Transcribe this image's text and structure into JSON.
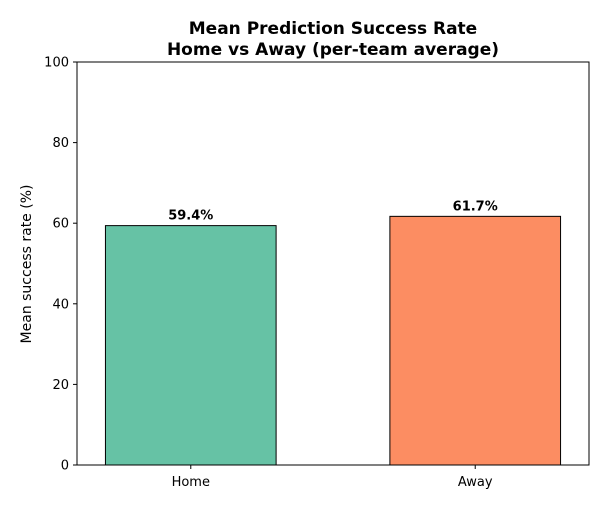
{
  "chart_data": {
    "type": "bar",
    "title": [
      "Mean Prediction Success Rate",
      "Home vs Away (per-team average)"
    ],
    "xlabel": "",
    "ylabel": "Mean success rate (%)",
    "categories": [
      "Home",
      "Away"
    ],
    "values": [
      59.4,
      61.7
    ],
    "data_labels": [
      "59.4%",
      "61.7%"
    ],
    "colors": [
      "#66c2a5",
      "#fc8d62"
    ],
    "ylim": [
      0,
      100
    ],
    "yticks": [
      0,
      20,
      40,
      60,
      80,
      100
    ],
    "grid": false,
    "legend": "none"
  }
}
